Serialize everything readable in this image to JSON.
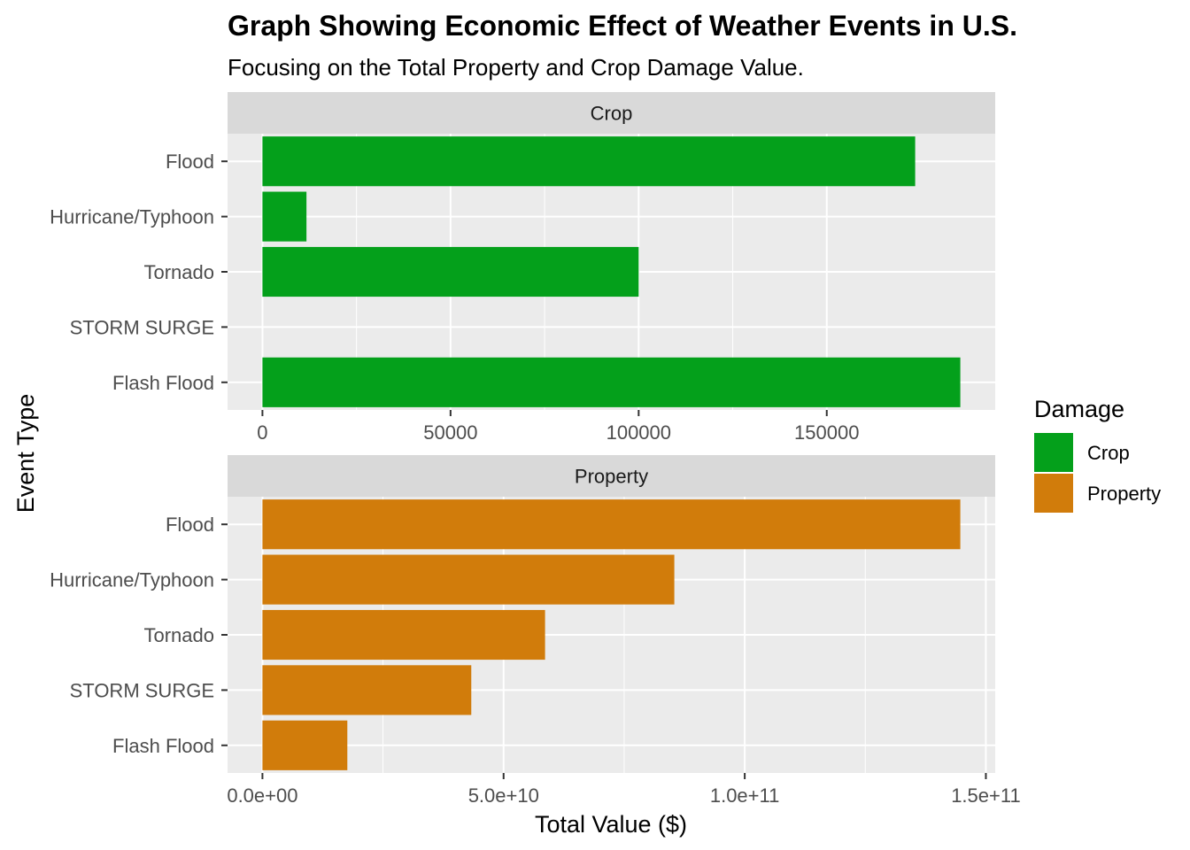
{
  "chart_data": {
    "type": "bar",
    "orientation": "horizontal",
    "title": "Graph Showing Economic Effect of Weather Events in U.S.",
    "subtitle": "Focusing on the Total Property and Crop Damage Value.",
    "xlabel": "Total Value ($)",
    "ylabel": "Event Type",
    "categories": [
      "Flood",
      "Hurricane/Typhoon",
      "Tornado",
      "STORM SURGE",
      "Flash Flood"
    ],
    "grid": true,
    "legend": {
      "title": "Damage",
      "position": "right",
      "entries": [
        {
          "label": "Crop",
          "color": "#04A01B"
        },
        {
          "label": "Property",
          "color": "#D17C0B"
        }
      ]
    },
    "facets": [
      {
        "name": "Crop",
        "color": "#04A01B",
        "values": [
          173500,
          11700,
          100000,
          0,
          185500
        ],
        "xlim": [
          -9275,
          194775
        ],
        "ticks": [
          0,
          50000,
          100000,
          150000
        ],
        "tick_labels": [
          "0",
          "50000",
          "100000",
          "150000"
        ]
      },
      {
        "name": "Property",
        "color": "#D17C0B",
        "values": [
          144700000000,
          85400000000,
          58600000000,
          43300000000,
          17600000000
        ],
        "xlim": [
          -7235000000,
          151935000000
        ],
        "ticks": [
          0,
          50000000000,
          100000000000,
          150000000000
        ],
        "tick_labels": [
          "0.0e+00",
          "5.0e+10",
          "1.0e+11",
          "1.5e+11"
        ]
      }
    ]
  }
}
